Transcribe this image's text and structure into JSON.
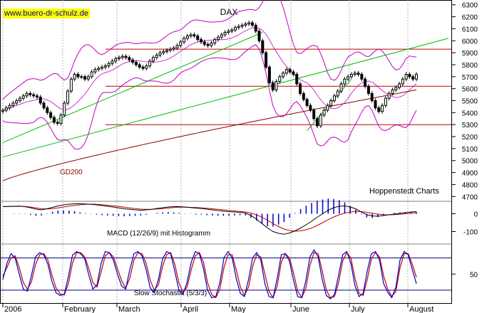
{
  "watermark": "www.buero-dr-schulz.de",
  "credit": "Hoppenstedt Charts",
  "chart_data": [
    {
      "type": "candlestick",
      "title": "DAX",
      "x_labels": [
        "2006",
        "February",
        "March",
        "April",
        "May",
        "June",
        "July",
        "August"
      ],
      "y_axis_ticks": [
        4700,
        4800,
        4900,
        5000,
        5100,
        5200,
        5300,
        5400,
        5500,
        5600,
        5700,
        5800,
        5900,
        6000,
        6100,
        6200,
        6300
      ],
      "ylim": [
        4660,
        6340
      ],
      "close": [
        5420,
        5440,
        5460,
        5480,
        5500,
        5520,
        5540,
        5560,
        5550,
        5540,
        5530,
        5480,
        5440,
        5400,
        5360,
        5320,
        5310,
        5380,
        5480,
        5580,
        5680,
        5720,
        5700,
        5700,
        5680,
        5700,
        5740,
        5760,
        5770,
        5780,
        5790,
        5810,
        5830,
        5850,
        5860,
        5870,
        5860,
        5840,
        5820,
        5800,
        5780,
        5770,
        5790,
        5830,
        5860,
        5880,
        5900,
        5910,
        5920,
        5930,
        5940,
        5960,
        5990,
        6020,
        6040,
        6050,
        6040,
        6010,
        5990,
        5970,
        5960,
        5980,
        6010,
        6030,
        6050,
        6070,
        6080,
        6090,
        6110,
        6120,
        6130,
        6140,
        6150,
        6130,
        6080,
        6000,
        5900,
        5780,
        5650,
        5590,
        5660,
        5700,
        5730,
        5760,
        5740,
        5720,
        5640,
        5560,
        5510,
        5460,
        5420,
        5350,
        5290,
        5380,
        5420,
        5460,
        5500,
        5540,
        5580,
        5640,
        5680,
        5700,
        5720,
        5730,
        5720,
        5680,
        5620,
        5560,
        5500,
        5440,
        5410,
        5460,
        5520,
        5560,
        5590,
        5610,
        5640,
        5680,
        5720,
        5700,
        5680,
        5720
      ],
      "gd200_endpoints": [
        [
          0,
          4830
        ],
        [
          121,
          5590
        ]
      ],
      "trendlines": [
        {
          "color": "#00c000",
          "points": [
            [
              0,
              5150
            ],
            [
              76,
              6070
            ]
          ]
        },
        {
          "color": "#00c000",
          "points": [
            [
              0,
              5030
            ],
            [
              121,
              6020
            ]
          ]
        },
        {
          "color": "#00c000",
          "points": [
            [
              89,
              5250
            ],
            [
              102,
              5680
            ]
          ]
        }
      ],
      "horizontal_lines": [
        5930,
        5620,
        5300
      ],
      "series_labels": [
        "GD200"
      ],
      "colors": {
        "candle": "#000000",
        "bollinger": "#c000c0",
        "gd200": "#8b0000",
        "trend": "#00c000",
        "hline": "#c00000"
      }
    },
    {
      "type": "line+bar",
      "label": "MACD (12/26/9) mit Histogramm",
      "y_axis_ticks": [
        0,
        -100
      ],
      "macd": [
        40,
        41,
        42,
        43,
        40,
        34,
        26,
        22,
        28,
        36,
        44,
        50,
        54,
        56,
        56,
        55,
        53,
        50,
        46,
        42,
        38,
        33,
        28,
        25,
        22,
        20,
        22,
        25,
        30,
        34,
        38,
        40,
        40,
        38,
        35,
        32,
        30,
        26,
        22,
        18,
        15,
        12,
        10,
        8,
        4,
        -10,
        -30,
        -55,
        -80,
        -100,
        -110,
        -115,
        -108,
        -96,
        -80,
        -62,
        -42,
        -20,
        0,
        20,
        34,
        42,
        44,
        38,
        28,
        10,
        -5,
        -12,
        -14,
        -10,
        -6,
        -2,
        2,
        6,
        10,
        12
      ],
      "signal": [
        40,
        41,
        41,
        42,
        41,
        38,
        33,
        28,
        27,
        29,
        33,
        38,
        43,
        47,
        51,
        53,
        54,
        53,
        51,
        48,
        45,
        41,
        37,
        33,
        29,
        26,
        25,
        25,
        27,
        29,
        32,
        35,
        37,
        37,
        36,
        35,
        33,
        31,
        28,
        25,
        22,
        19,
        16,
        13,
        10,
        4,
        -6,
        -19,
        -36,
        -55,
        -72,
        -86,
        -94,
        -98,
        -96,
        -90,
        -80,
        -66,
        -50,
        -33,
        -18,
        -6,
        4,
        10,
        13,
        12,
        8,
        3,
        -2,
        -5,
        -6,
        -5,
        -3,
        0,
        3,
        6
      ],
      "ylim": [
        -170,
        70
      ],
      "colors": {
        "macd": "#000000",
        "signal": "#c00000",
        "histogram": "#0000c0"
      }
    },
    {
      "type": "line",
      "label": "Slow Stochastik (5/3/3)",
      "y_axis_ticks": [
        50
      ],
      "k": [
        40,
        70,
        88,
        80,
        50,
        22,
        18,
        48,
        82,
        90,
        86,
        68,
        36,
        15,
        10,
        12,
        45,
        85,
        92,
        88,
        78,
        48,
        22,
        30,
        70,
        92,
        90,
        76,
        50,
        28,
        22,
        58,
        88,
        92,
        84,
        58,
        24,
        16,
        40,
        78,
        92,
        88,
        55,
        20,
        12,
        35,
        72,
        92,
        88,
        60,
        20,
        6,
        8,
        34,
        80,
        92,
        80,
        42,
        14,
        8,
        40,
        80,
        90,
        76,
        32,
        8,
        6,
        42,
        86,
        88,
        74,
        38,
        8,
        6,
        38,
        82,
        95,
        82,
        40,
        10,
        4,
        12,
        48,
        86,
        92,
        70,
        28,
        8,
        14,
        56,
        88,
        92,
        76,
        32,
        16,
        6,
        26,
        76,
        92,
        86,
        58,
        32
      ],
      "d": [
        46,
        62,
        80,
        84,
        62,
        34,
        22,
        36,
        68,
        86,
        88,
        76,
        48,
        24,
        13,
        11,
        32,
        70,
        90,
        90,
        82,
        60,
        34,
        26,
        54,
        84,
        90,
        82,
        60,
        38,
        24,
        42,
        76,
        90,
        88,
        70,
        38,
        20,
        30,
        64,
        86,
        90,
        68,
        34,
        16,
        26,
        58,
        84,
        90,
        72,
        34,
        12,
        6,
        22,
        62,
        86,
        86,
        58,
        26,
        10,
        26,
        64,
        86,
        82,
        50,
        18,
        6,
        28,
        72,
        88,
        80,
        52,
        18,
        6,
        24,
        66,
        90,
        88,
        56,
        20,
        6,
        8,
        34,
        74,
        90,
        80,
        42,
        14,
        10,
        40,
        78,
        90,
        82,
        46,
        22,
        8,
        18,
        62,
        88,
        88,
        68,
        44
      ],
      "upper_line": 80,
      "lower_line": 20,
      "ylim": [
        -4,
        106
      ],
      "colors": {
        "k": "#0000c0",
        "d": "#c00000",
        "bands": "#000080"
      }
    }
  ]
}
